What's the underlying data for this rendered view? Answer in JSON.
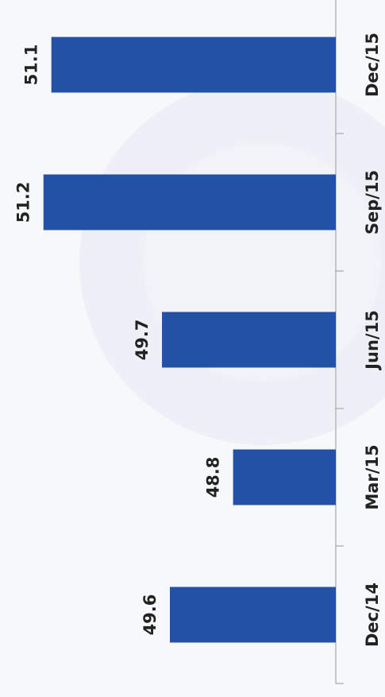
{
  "chart_data": {
    "type": "bar",
    "orientation": "horizontal",
    "categories": [
      "Dec/14",
      "Mar/15",
      "Jun/15",
      "Sep/15",
      "Dec/15"
    ],
    "values": [
      49.6,
      48.8,
      49.7,
      51.2,
      51.1
    ],
    "color": "#2352a5",
    "ylim": [
      47.5,
      51.75
    ]
  }
}
